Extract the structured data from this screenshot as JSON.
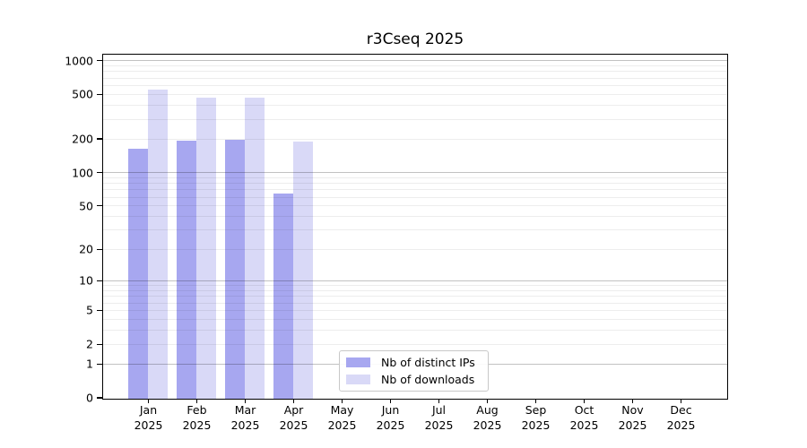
{
  "chart_data": {
    "type": "bar",
    "title": "r3Cseq 2025",
    "year_label": "2025",
    "categories": [
      "Jan",
      "Feb",
      "Mar",
      "Apr",
      "May",
      "Jun",
      "Jul",
      "Aug",
      "Sep",
      "Oct",
      "Nov",
      "Dec"
    ],
    "series": [
      {
        "name": "Nb of distinct IPs",
        "color": "#a7a7f0",
        "values": [
          165,
          195,
          200,
          65,
          0,
          0,
          0,
          0,
          0,
          0,
          0,
          0
        ]
      },
      {
        "name": "Nb of downloads",
        "color": "#d9d9f7",
        "values": [
          560,
          470,
          470,
          190,
          0,
          0,
          0,
          0,
          0,
          0,
          0,
          0
        ]
      }
    ],
    "y_ticks": [
      0,
      1,
      2,
      5,
      10,
      20,
      50,
      100,
      200,
      500,
      1000
    ],
    "y_scale": "log1p",
    "ylim": [
      0,
      1114
    ],
    "grid_major_values": [
      1,
      10,
      100,
      1000
    ],
    "grid_minor_rule": "2-9 per decade",
    "legend_position": "inside bottom-center-left"
  },
  "colors": {
    "bar_distinct_ips": "#a7a7f0",
    "bar_downloads": "#d9d9f7",
    "spine": "#000000",
    "grid_major": "rgba(0,0,0,0.24)",
    "grid_minor": "rgba(0,0,0,0.07)",
    "background": "#ffffff",
    "text": "#000000"
  }
}
